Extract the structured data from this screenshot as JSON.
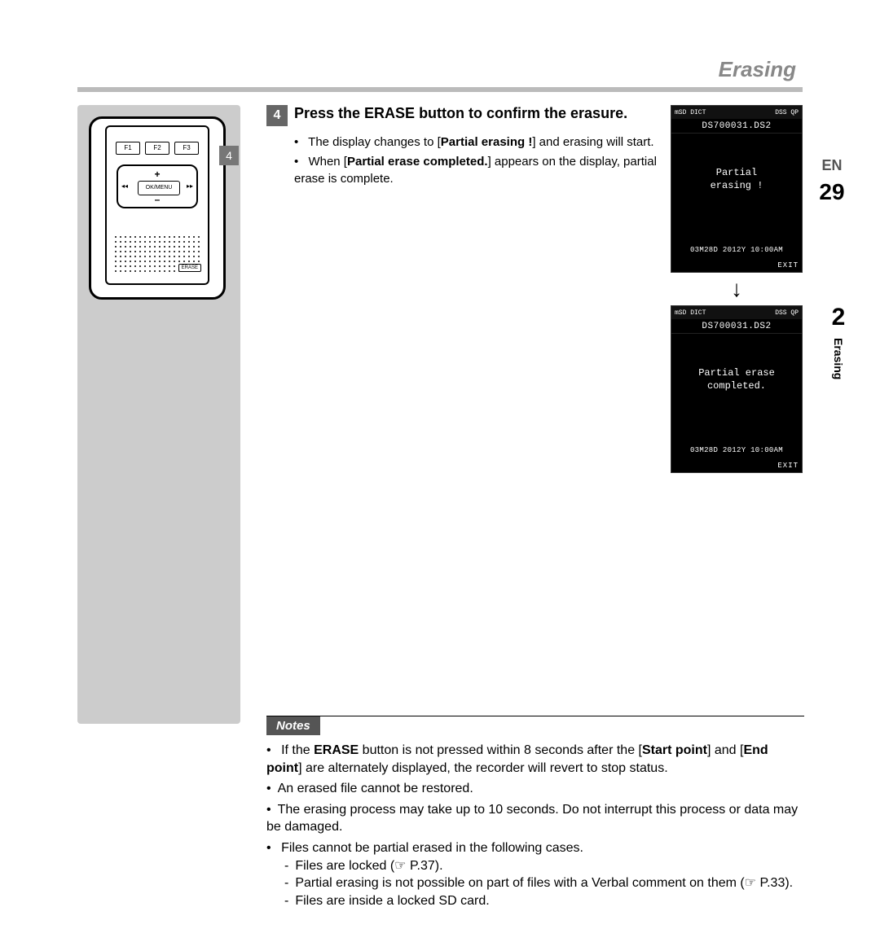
{
  "header": {
    "title": "Erasing"
  },
  "sideTab": {
    "chapter": "2",
    "label": "Erasing"
  },
  "device": {
    "callout": "4",
    "fkeys": [
      "F1",
      "F2",
      "F3"
    ],
    "center": "OK/MENU",
    "left": "◂◂",
    "right": "▸▸",
    "plus": "+",
    "minus": "–",
    "erase": "ERASE"
  },
  "step": {
    "num": "4",
    "title_a": "Press the ",
    "title_b": "ERASE",
    "title_c": " button to confirm the erasure.",
    "b1a": "The display changes to [",
    "b1b": "Partial erasing !",
    "b1c": "] and erasing will start.",
    "b2a": "When [",
    "b2b": "Partial erase completed.",
    "b2c": "] appears on the display, partial erase is complete."
  },
  "screens": {
    "topbar_left": "mSD DICT",
    "topbar_right": "DSS QP",
    "file": "DS700031.DS2",
    "screen1_line1": "Partial",
    "screen1_line2": "erasing !",
    "screen2_line1": "Partial erase",
    "screen2_line2": "completed.",
    "date": "03M28D 2012Y 10:00AM",
    "exit": "EXIT",
    "arrow": "↓"
  },
  "notes": {
    "label": "Notes",
    "n1a": "If the ",
    "n1b": "ERASE",
    "n1c": " button is not pressed within 8 seconds after the [",
    "n1d": "Start point",
    "n1e": "] and [",
    "n1f": "End point",
    "n1g": "] are alternately displayed, the recorder will revert to stop status.",
    "n2": "An erased file cannot be restored.",
    "n3": "The erasing process may take up to 10 seconds. Do not interrupt this process or data may be damaged.",
    "n4": "Files cannot be partial erased in the following cases.",
    "s1": "Files are locked (☞ P.37).",
    "s2": "Partial erasing is not possible on part of files with a Verbal comment on them (☞ P.33).",
    "s3": "Files are inside a locked SD card."
  },
  "footer": {
    "lang": "EN",
    "page": "29"
  },
  "colors": {
    "title_gray": "#888888",
    "rule_gray": "#bbbbbb",
    "sidebar_gray": "#cccccc",
    "step_num_bg": "#666666",
    "notes_tab_bg": "#555555",
    "screen_bg": "#000000",
    "screen_fg": "#ffffff"
  }
}
